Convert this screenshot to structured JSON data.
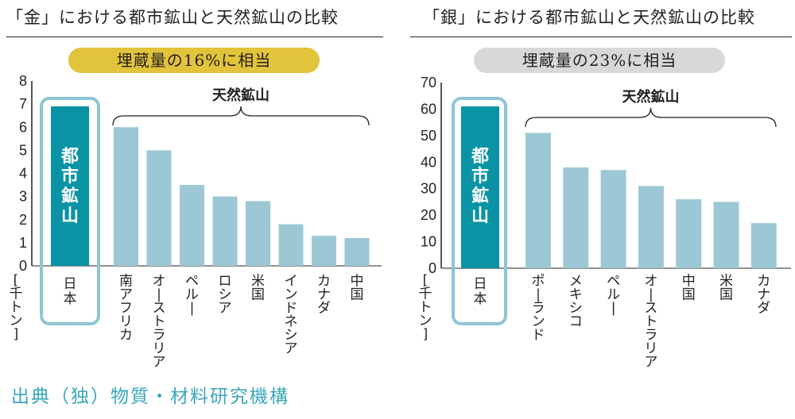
{
  "source": "出典（独）物質・材料研究機構",
  "colors": {
    "bar": "#9cc8d5",
    "highlight_bar": "#0a93a5",
    "highlight_frame": "#8ec6d2",
    "gold_pill": "#e2c33c",
    "silver_pill": "#d8d8d8",
    "source_text": "#3aa6b9"
  },
  "chart_data": [
    {
      "type": "bar",
      "title": "「金」における都市鉱山と天然鉱山の比較",
      "subtitle": "埋蔵量の16%に相当",
      "ylabel": "[千トン]",
      "ylim": [
        0,
        8
      ],
      "yticks": [
        "0",
        "1",
        "2",
        "3",
        "4",
        "5",
        "6",
        "7",
        "8"
      ],
      "highlight": {
        "category": "日本",
        "label": "都市鉱山",
        "value": 6.9
      },
      "group_label": "天然鉱山",
      "categories": [
        "南アフリカ",
        "オーストラリア",
        "ペルー",
        "ロシア",
        "米国",
        "インドネシア",
        "カナダ",
        "中国"
      ],
      "values": [
        6.0,
        5.0,
        3.5,
        3.0,
        2.8,
        1.8,
        1.3,
        1.2
      ]
    },
    {
      "type": "bar",
      "title": "「銀」における都市鉱山と天然鉱山の比較",
      "subtitle": "埋蔵量の23%に相当",
      "ylabel": "[千トン]",
      "ylim": [
        0,
        70
      ],
      "yticks": [
        "0",
        "10",
        "20",
        "30",
        "40",
        "50",
        "60",
        "70"
      ],
      "highlight": {
        "category": "日本",
        "label": "都市鉱山",
        "value": 61
      },
      "group_label": "天然鉱山",
      "categories": [
        "ポーランド",
        "メキシコ",
        "ペルー",
        "オーストラリア",
        "中国",
        "米国",
        "カナダ"
      ],
      "values": [
        51,
        38,
        37,
        31,
        26,
        25,
        17
      ]
    }
  ]
}
